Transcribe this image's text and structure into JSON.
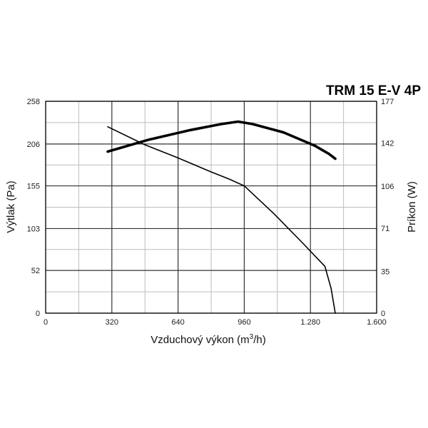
{
  "chart_data": {
    "type": "line",
    "title": "TRM 15 E-V 4P",
    "xlabel": "Vzduchový výkon (m",
    "xlabel_sup": "3",
    "xlabel_tail": "/h)",
    "ylabel": "Výtlak (Pa)",
    "y2label": "Príkon (W)",
    "xlim": [
      0,
      1600
    ],
    "ylim": [
      0,
      258
    ],
    "y2lim": [
      0,
      177
    ],
    "x_ticks": [
      0,
      320,
      640,
      960,
      1280,
      1600
    ],
    "x_tick_labels": [
      "0",
      "320",
      "640",
      "960",
      "1.280",
      "1.600"
    ],
    "y_ticks": [
      0,
      52,
      103,
      155,
      206,
      258
    ],
    "y_tick_labels": [
      "0",
      "52",
      "103",
      "155",
      "206",
      "258"
    ],
    "y2_ticks": [
      0,
      35,
      71,
      106,
      142,
      177
    ],
    "y2_tick_labels": [
      "0",
      "35",
      "71",
      "106",
      "142",
      "177"
    ],
    "grid": true,
    "series": [
      {
        "axis": "left",
        "style": "thin",
        "values": [
          [
            300,
            227
          ],
          [
            480,
            205
          ],
          [
            640,
            189
          ],
          [
            800,
            172
          ],
          [
            890,
            163
          ],
          [
            960,
            155
          ],
          [
            1100,
            122
          ],
          [
            1240,
            86
          ],
          [
            1350,
            57
          ],
          [
            1380,
            30
          ],
          [
            1400,
            0
          ]
        ]
      },
      {
        "axis": "right",
        "style": "thick",
        "values": [
          [
            300,
            135
          ],
          [
            500,
            145
          ],
          [
            700,
            153
          ],
          [
            850,
            158
          ],
          [
            930,
            160
          ],
          [
            1000,
            158
          ],
          [
            1150,
            151
          ],
          [
            1300,
            140
          ],
          [
            1370,
            133
          ],
          [
            1400,
            129
          ]
        ]
      }
    ]
  }
}
